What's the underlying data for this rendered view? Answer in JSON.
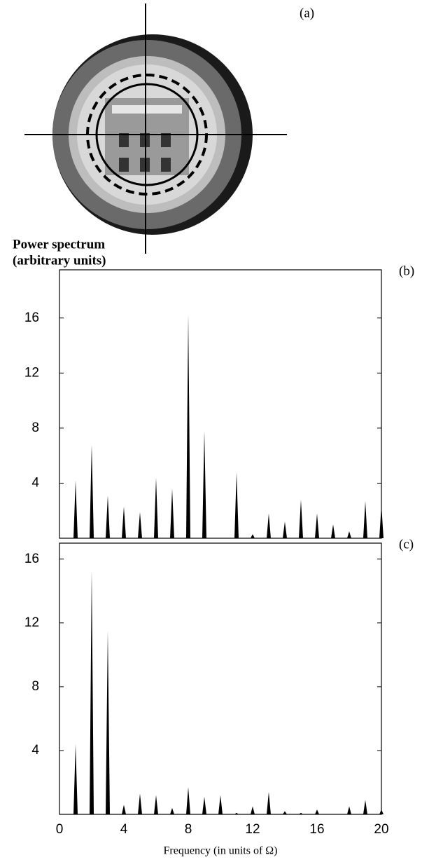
{
  "panel_a": {
    "label": "(a)"
  },
  "ylabel": [
    "Power spectrum",
    "(arbitrary units)"
  ],
  "xlabel": "Frequency (in units of Ω)",
  "chart_data": [
    {
      "type": "spike",
      "label": "(b)",
      "color": "#000000",
      "x": [
        1,
        2,
        3,
        4,
        5,
        6,
        7,
        8,
        9,
        11,
        12,
        13,
        14,
        15,
        16,
        17,
        18,
        19,
        20
      ],
      "values": [
        4.2,
        6.8,
        3.1,
        2.3,
        1.9,
        4.4,
        3.6,
        16.3,
        7.8,
        4.8,
        0.3,
        1.8,
        1.2,
        2.8,
        1.8,
        1.0,
        0.5,
        2.7,
        2.4
      ],
      "xlim": [
        0,
        20
      ],
      "ylim": [
        0,
        19.5
      ],
      "yticks": [
        4,
        8,
        12,
        16
      ]
    },
    {
      "type": "spike",
      "label": "(c)",
      "color": "#000000",
      "x": [
        1,
        2,
        3,
        4,
        5,
        6,
        7,
        8,
        9,
        10,
        11,
        12,
        13,
        14,
        15,
        16,
        18,
        19,
        20
      ],
      "values": [
        4.4,
        15.3,
        11.5,
        0.6,
        1.3,
        1.2,
        0.4,
        1.7,
        1.1,
        1.2,
        0.1,
        0.5,
        1.4,
        0.2,
        0.1,
        0.3,
        0.5,
        0.9,
        0.3
      ],
      "xlim": [
        0,
        20
      ],
      "ylim": [
        0,
        17
      ],
      "yticks": [
        4,
        8,
        12,
        16
      ],
      "xticks": [
        0,
        4,
        8,
        12,
        16,
        20
      ]
    }
  ]
}
